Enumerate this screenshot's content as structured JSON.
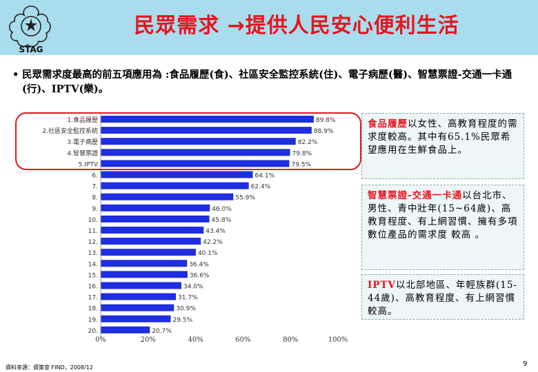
{
  "slide": {
    "title_part1": "民眾需求",
    "title_arrow": "→",
    "title_part2": "提供人民安心便利生活",
    "logo_text": "STAG",
    "intro": "民眾需求度最高的前五項應用為 :食品履歷(食)、社區安全監控系統(住)、電子病歷(醫)、智慧票證-交通一卡通 (行)、IPTV(樂)。",
    "source": "資料來源：資策會 FIND，2008/12",
    "page_number": "9"
  },
  "panels": [
    {
      "highlight": "食品履歷",
      "text": "以女性、高教育程度的需求度較高。其中有65.1%民眾希望應用在生鮮食品上。"
    },
    {
      "highlight": "智慧票證-交通一卡通",
      "text": "以台北市、男性、青中壯年(15~64歲)、高教育程度、有上網習慣、擁有多項數位產品的需求度 較高 。"
    },
    {
      "highlight": "IPTV",
      "text": "以北部地區、年輕族群(15-44歲)、高教育程度、有上網習慣較高。"
    }
  ],
  "colors": {
    "bar": "#1f2ee0",
    "accent": "#e8141e",
    "header_bg": "#a9dcec"
  },
  "chart_data": {
    "type": "bar",
    "orientation": "horizontal",
    "categories": [
      "1.食品履歷",
      "2.社區安全監控系統",
      "3.電子病歷",
      "4.智慧票證",
      "5.IPTV",
      "6.",
      "7.",
      "8.",
      "9.",
      "10.",
      "11.",
      "12.",
      "13.",
      "14.",
      "15.",
      "16.",
      "17.",
      "18.",
      "19.",
      "20."
    ],
    "values": [
      89.8,
      88.9,
      82.2,
      79.8,
      79.5,
      64.1,
      62.4,
      55.9,
      46.0,
      45.8,
      43.4,
      42.2,
      40.1,
      36.4,
      36.6,
      34.0,
      31.7,
      30.9,
      29.5,
      20.7
    ],
    "value_labels": [
      "89.8%",
      "88.9%",
      "82.2%",
      "79.8%",
      "79.5%",
      "64.1%",
      "62.4%",
      "55.9%",
      "46.0%",
      "45.8%",
      "43.4%",
      "42.2%",
      "40.1%",
      "36.4%",
      "36.6%",
      "34.0%",
      "31.7%",
      "30.9%",
      "29.5%",
      "20.7%"
    ],
    "x_ticks": [
      "0%",
      "20%",
      "40%",
      "60%",
      "80%",
      "100%"
    ],
    "xlim": [
      0,
      100
    ]
  }
}
